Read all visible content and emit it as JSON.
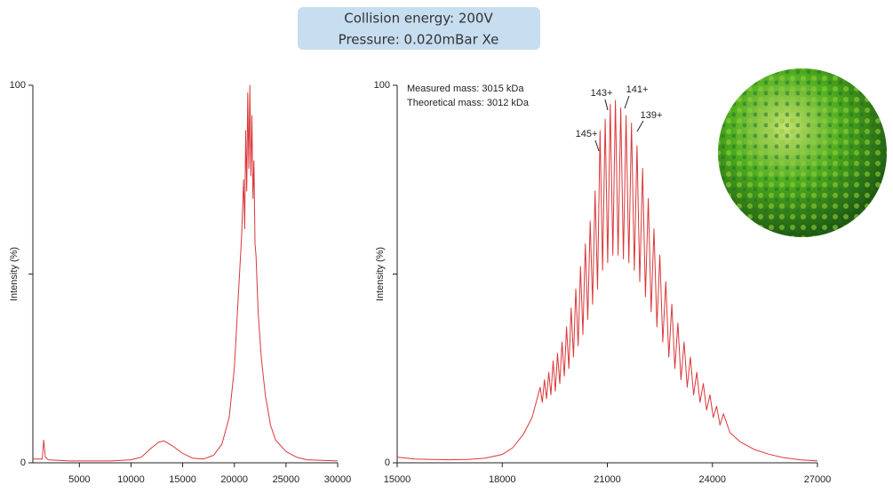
{
  "header": {
    "lines": [
      "Collision energy: 200V",
      "Pressure: 0.020mBar Xe"
    ]
  },
  "chart_data": [
    {
      "type": "line",
      "y_label": "Intensity (%)",
      "color": "#d9383a",
      "xlim": [
        500,
        30000
      ],
      "ylim": [
        0,
        100
      ],
      "xticks": [
        5000,
        10000,
        15000,
        20000,
        25000,
        30000
      ],
      "yticks": [
        0,
        100
      ],
      "yminorticks": [
        50
      ],
      "x": [
        500,
        1400,
        1550,
        1700,
        2000,
        4000,
        8000,
        10000,
        11000,
        12000,
        12700,
        13200,
        14000,
        15000,
        16000,
        17000,
        18000,
        18800,
        19500,
        20000,
        20400,
        20700,
        20900,
        21000,
        21100,
        21200,
        21300,
        21400,
        21500,
        21600,
        21700,
        21800,
        21900,
        22000,
        22100,
        22300,
        22600,
        23000,
        23500,
        24000,
        25000,
        26000,
        27000,
        30000
      ],
      "values": [
        1,
        1,
        6,
        1.5,
        0.8,
        0.5,
        0.5,
        0.8,
        1.5,
        4,
        5.5,
        5.8,
        4.5,
        2.5,
        1.2,
        1,
        2,
        5,
        12,
        25,
        45,
        60,
        75,
        62,
        88,
        72,
        98,
        78,
        100,
        76,
        92,
        70,
        80,
        58,
        55,
        40,
        28,
        18,
        10,
        6,
        3,
        1.5,
        0.8,
        0.5
      ]
    },
    {
      "type": "line",
      "y_label": "Intensity (%)",
      "color": "#d9383a",
      "xlim": [
        15000,
        27000
      ],
      "ylim": [
        0,
        100
      ],
      "xticks": [
        15000,
        18000,
        21000,
        24000,
        27000
      ],
      "yticks": [
        0,
        100
      ],
      "yminorticks": [
        50
      ],
      "annotations": [
        "Measured mass: 3015 kDa",
        "Theoretical mass: 3012 kDa"
      ],
      "peak_labels": [
        "145+",
        "143+",
        "141+",
        "139+"
      ],
      "x": [
        15000,
        15500,
        16000,
        16500,
        17000,
        17500,
        18000,
        18300,
        18600,
        18850,
        19082,
        19143,
        19204,
        19265,
        19327,
        19390,
        19452,
        19515,
        19578,
        19642,
        19706,
        19771,
        19836,
        19901,
        19967,
        20033,
        20100,
        20167,
        20235,
        20303,
        20372,
        20441,
        20510,
        20580,
        20651,
        20722,
        20793,
        20865,
        20938,
        21011,
        21084,
        21158,
        21232,
        21307,
        21383,
        21460,
        21536,
        21613,
        21691,
        21770,
        21848,
        21927,
        22007,
        22088,
        22169,
        22251,
        22333,
        22416,
        22500,
        22584,
        22669,
        22755,
        22841,
        22928,
        23015,
        23103,
        23192,
        23282,
        23372,
        23463,
        23555,
        23647,
        23740,
        23834,
        23929,
        24024,
        24120,
        24217,
        24315,
        24500,
        24800,
        25200,
        25600,
        26000,
        26500,
        27000
      ],
      "values": [
        1.5,
        1.0,
        0.9,
        0.8,
        0.9,
        1.2,
        2.2,
        4,
        7.5,
        12,
        20,
        16,
        22,
        17,
        24,
        18,
        27,
        19,
        29,
        21,
        32,
        23,
        36,
        25,
        41,
        28,
        46,
        31,
        52,
        34,
        58,
        38,
        64,
        42,
        72,
        46,
        88,
        51,
        91,
        53,
        95,
        55,
        96,
        55,
        94,
        54,
        92,
        53,
        90,
        51,
        84,
        48,
        78,
        44,
        70,
        40,
        62,
        36,
        55,
        32,
        48,
        28,
        42,
        25,
        37,
        22,
        32,
        20,
        28,
        18,
        24,
        16,
        21,
        14,
        18,
        12,
        15,
        10,
        13,
        8,
        5.5,
        3.5,
        2.3,
        1.4,
        0.8,
        0.5
      ]
    }
  ]
}
